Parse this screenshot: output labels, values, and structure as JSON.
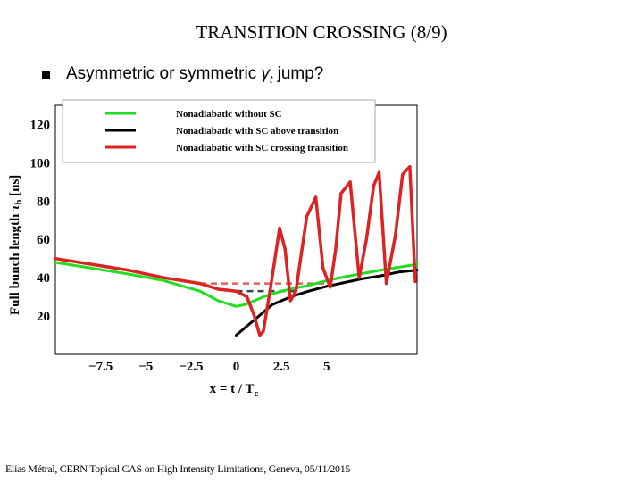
{
  "slide": {
    "title": "TRANSITION CROSSING (8/9)",
    "bullet_prefix": "Asymmetric or symmetric ",
    "bullet_gamma": "γ",
    "bullet_sub": "t",
    "bullet_suffix": " jump?",
    "footer": "Elias Métral, CERN Topical CAS on High Intensity Limitations, Geneva, 05/11/2015"
  },
  "chart_data": {
    "type": "line",
    "xlabel_main": "x = t / T",
    "xlabel_sub": "c",
    "ylabel_main": "Full bunch length ",
    "ylabel_tau": "τ",
    "ylabel_sub": "b",
    "ylabel_unit": " [ns]",
    "xticks": [
      -7.5,
      -5,
      -2.5,
      0,
      2.5,
      5
    ],
    "xtick_labels": [
      "−7.5",
      "−5",
      "−2.5",
      "0",
      "2.5",
      "5"
    ],
    "yticks": [
      20,
      40,
      60,
      80,
      100,
      120
    ],
    "xlim": [
      -10,
      10
    ],
    "ylim": [
      0,
      130
    ],
    "grid": true,
    "legend_position": "top",
    "colors": {
      "green": "#22dd22",
      "black": "#000000",
      "red": "#dd2222",
      "grid": "#1a2a8a",
      "dashed_red": "#e06060",
      "dashed_dark": "#334455"
    },
    "series": [
      {
        "name": "Nonadiabatic without SC",
        "color": "#22dd22",
        "x": [
          -10,
          -8,
          -6,
          -4,
          -2,
          -1,
          0,
          0.5,
          1.5,
          2.5,
          4,
          5,
          6,
          8,
          10
        ],
        "y": [
          48,
          45,
          42,
          38.5,
          33,
          28,
          25,
          26,
          30,
          33,
          36,
          38.5,
          40.5,
          44,
          47
        ]
      },
      {
        "name": "Nonadiabatic with SC above transition",
        "color": "#000000",
        "x": [
          0,
          1,
          2,
          3,
          4,
          5,
          6,
          7,
          8,
          9,
          10
        ],
        "y": [
          10,
          18,
          26,
          30,
          33,
          35.5,
          37.5,
          39.5,
          41,
          43,
          44
        ]
      },
      {
        "name": "Nonadiabatic with SC crossing transition",
        "color": "#dd2222",
        "x": [
          -10,
          -8,
          -6,
          -4,
          -2,
          -1,
          0,
          0.6,
          1.0,
          1.3,
          1.5,
          1.9,
          2.4,
          2.7,
          3.0,
          3.3,
          3.9,
          4.4,
          4.8,
          5.2,
          5.5,
          5.8,
          6.3,
          6.8,
          7.2,
          7.6,
          7.9,
          8.3,
          8.8,
          9.2,
          9.6,
          9.9
        ],
        "y": [
          50,
          47,
          44,
          40,
          37,
          34,
          33,
          30,
          20,
          10,
          12,
          35,
          66,
          55,
          28,
          33,
          72,
          82,
          45,
          35,
          55,
          84,
          90,
          40,
          60,
          88,
          95,
          37,
          62,
          94,
          98,
          38
        ]
      }
    ],
    "dashed_lines": [
      {
        "color": "#e06060",
        "x": [
          -2,
          5
        ],
        "y": [
          37,
          37
        ]
      },
      {
        "color": "#334455",
        "x": [
          0,
          3.5
        ],
        "y": [
          33,
          33
        ]
      }
    ]
  }
}
